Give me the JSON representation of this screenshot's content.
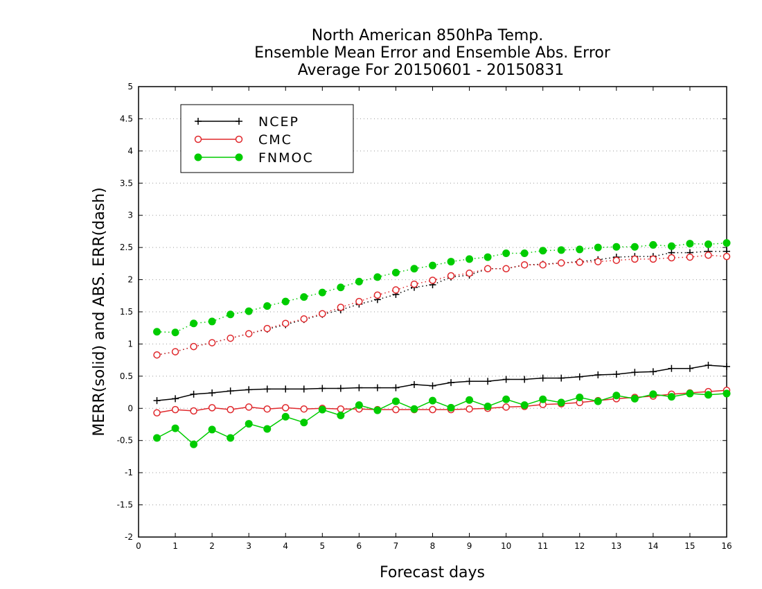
{
  "chart_data": {
    "type": "line",
    "title_lines": [
      "North American 850hPa Temp.",
      "Ensemble Mean Error and Ensemble Abs. Error",
      "Average For 20150601 - 20150831"
    ],
    "xlabel": "Forecast days",
    "ylabel": "MERR(solid) and ABS. ERR(dash)",
    "xlim": [
      0,
      16
    ],
    "ylim": [
      -2,
      5
    ],
    "x_ticks": [
      0,
      1,
      2,
      3,
      4,
      5,
      6,
      7,
      8,
      9,
      10,
      11,
      12,
      13,
      14,
      15,
      16
    ],
    "x_tick_labels": [
      "0",
      "1",
      "2",
      "3",
      "4",
      "5",
      "6",
      "7",
      "8",
      "9",
      "10",
      "11",
      "12",
      "13",
      "14",
      "15",
      "16"
    ],
    "y_ticks": [
      -2,
      -1.5,
      -1,
      -0.5,
      0,
      0.5,
      1,
      1.5,
      2,
      2.5,
      3,
      3.5,
      4,
      4.5,
      5
    ],
    "y_tick_labels": [
      "-2",
      "-1.5",
      "-1",
      "-0.5",
      "0",
      "0.5",
      "1",
      "1.5",
      "2",
      "2.5",
      "3",
      "3.5",
      "4",
      "4.5",
      "5"
    ],
    "grid": "horizontal dotted",
    "legend_position": "top-left",
    "x": [
      0.5,
      1,
      1.5,
      2,
      2.5,
      3,
      3.5,
      4,
      4.5,
      5,
      5.5,
      6,
      6.5,
      7,
      7.5,
      8,
      8.5,
      9,
      9.5,
      10,
      10.5,
      11,
      11.5,
      12,
      12.5,
      13,
      13.5,
      14,
      14.5,
      15,
      15.5,
      16
    ],
    "series": [
      {
        "name": "NCEP",
        "color": "#000000",
        "marker": "plus",
        "merr": [
          0.12,
          0.15,
          0.22,
          0.24,
          0.27,
          0.29,
          0.3,
          0.3,
          0.3,
          0.31,
          0.31,
          0.32,
          0.32,
          0.32,
          0.37,
          0.35,
          0.4,
          0.42,
          0.42,
          0.45,
          0.45,
          0.47,
          0.47,
          0.49,
          0.52,
          0.53,
          0.56,
          0.57,
          0.62,
          0.62,
          0.67,
          0.65
        ],
        "abs_err": [
          0.83,
          0.88,
          0.96,
          1.02,
          1.09,
          1.16,
          1.23,
          1.3,
          1.38,
          1.46,
          1.53,
          1.62,
          1.69,
          1.77,
          1.88,
          1.92,
          2.04,
          2.07,
          2.17,
          2.17,
          2.23,
          2.24,
          2.26,
          2.28,
          2.31,
          2.35,
          2.36,
          2.36,
          2.42,
          2.42,
          2.44,
          2.44
        ]
      },
      {
        "name": "CMC",
        "color": "#e0282c",
        "marker": "open-circle",
        "merr": [
          -0.07,
          -0.02,
          -0.04,
          0.01,
          -0.02,
          0.02,
          -0.01,
          0.01,
          -0.01,
          0.0,
          -0.01,
          -0.01,
          -0.02,
          -0.02,
          -0.02,
          -0.02,
          -0.02,
          -0.01,
          0.0,
          0.02,
          0.03,
          0.06,
          0.07,
          0.09,
          0.12,
          0.15,
          0.17,
          0.19,
          0.22,
          0.24,
          0.26,
          0.28
        ],
        "abs_err": [
          0.83,
          0.88,
          0.96,
          1.02,
          1.09,
          1.16,
          1.24,
          1.32,
          1.39,
          1.47,
          1.57,
          1.66,
          1.76,
          1.84,
          1.93,
          1.99,
          2.06,
          2.1,
          2.17,
          2.17,
          2.23,
          2.23,
          2.26,
          2.27,
          2.28,
          2.3,
          2.32,
          2.32,
          2.34,
          2.35,
          2.38,
          2.36
        ]
      },
      {
        "name": "FNMOC",
        "color": "#00cc00",
        "marker": "filled-circle",
        "merr": [
          -0.46,
          -0.31,
          -0.56,
          -0.33,
          -0.46,
          -0.24,
          -0.32,
          -0.13,
          -0.22,
          -0.02,
          -0.11,
          0.05,
          -0.03,
          0.11,
          -0.01,
          0.12,
          0.01,
          0.13,
          0.03,
          0.14,
          0.05,
          0.14,
          0.09,
          0.17,
          0.11,
          0.2,
          0.15,
          0.22,
          0.18,
          0.23,
          0.21,
          0.23
        ],
        "abs_err": [
          1.19,
          1.18,
          1.32,
          1.35,
          1.46,
          1.51,
          1.59,
          1.66,
          1.73,
          1.8,
          1.88,
          1.97,
          2.04,
          2.11,
          2.17,
          2.22,
          2.28,
          2.32,
          2.35,
          2.41,
          2.41,
          2.45,
          2.46,
          2.47,
          2.5,
          2.51,
          2.51,
          2.54,
          2.52,
          2.56,
          2.55,
          2.57
        ]
      }
    ]
  }
}
